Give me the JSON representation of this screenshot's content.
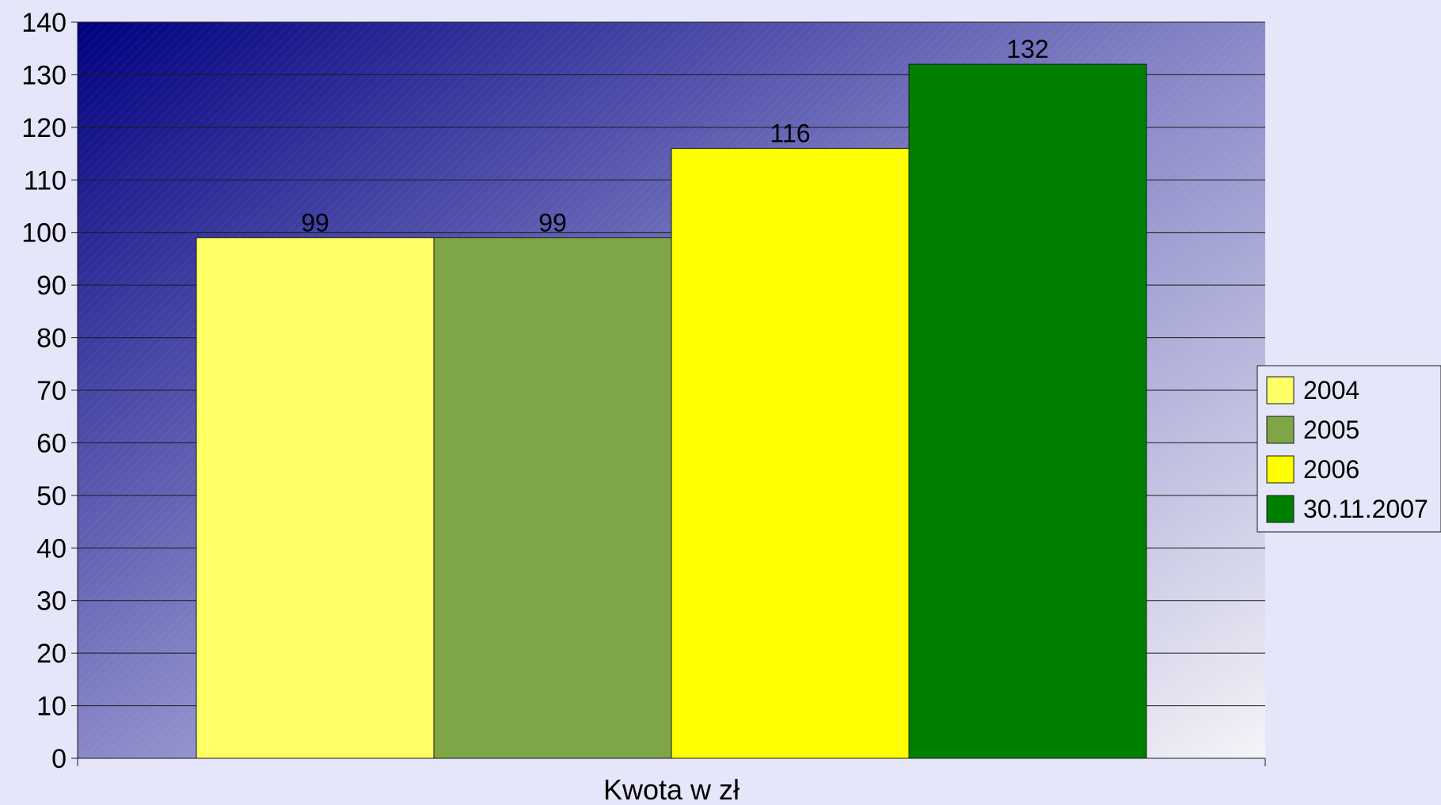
{
  "chart_data": {
    "type": "bar",
    "categories": [
      "Kwota w zł"
    ],
    "series": [
      {
        "name": "2004",
        "values": [
          99
        ],
        "color": "#ffff66"
      },
      {
        "name": "2005",
        "values": [
          99
        ],
        "color": "#7fa646"
      },
      {
        "name": "2006",
        "values": [
          116
        ],
        "color": "#ffff00"
      },
      {
        "name": "30.11.2007",
        "values": [
          132
        ],
        "color": "#008000"
      }
    ],
    "title": "",
    "xlabel": "",
    "ylabel": "",
    "ylim": [
      0,
      140
    ],
    "yticks": [
      0,
      10,
      20,
      30,
      40,
      50,
      60,
      70,
      80,
      90,
      100,
      110,
      120,
      130,
      140
    ],
    "grid": true,
    "legend": "right",
    "data_labels": true,
    "background": {
      "gradient_from": "#000080",
      "gradient_to": "#f4f4f8",
      "page": "#e6e6fa"
    }
  }
}
